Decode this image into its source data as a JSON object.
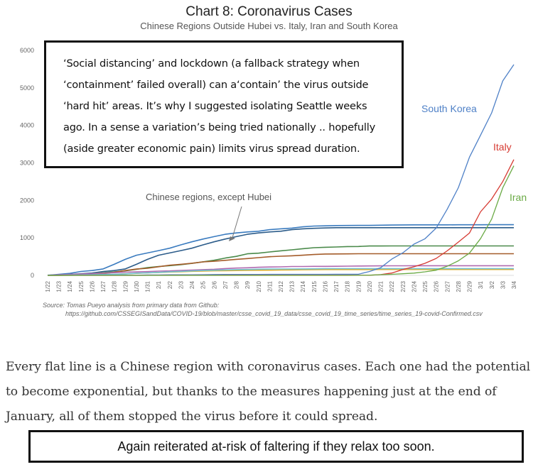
{
  "header": {
    "title": "Chart 8: Coronavirus Cases",
    "subtitle": "Chinese Regions Outside Hubei vs. Italy, Iran and South Korea"
  },
  "callout_text": "‘Social distancing’ and lockdown (a fallback strategy when ‘containment’ failed overall) can a‘contain’ the virus outside ‘hard hit’ areas. It’s why I suggested isolating Seattle  weeks ago. In a sense a variation’s being tried nationally .. hopefully (aside greater economic pain) limits virus spread duration.",
  "source": {
    "line1": "Source: Tomas Pueyo analysis from primary data from Github:",
    "line2": "https://github.com/CSSEGISandData/COVID-19/blob/master/csse_covid_19_data/csse_covid_19_time_series/time_series_19-covid-Confirmed.csv"
  },
  "paragraph": "Every flat line is a Chinese region with coronavirus cases. Each one had the potential to become exponential, but thanks to the measures happening just at the end of January, all of them stopped the virus before it could spread.",
  "bottom_note": "Again reiterated at-risk of faltering if they relax too soon.",
  "chart_data": {
    "type": "line",
    "title": "Chart 8: Coronavirus Cases",
    "subtitle": "Chinese Regions Outside Hubei vs. Italy, Iran and South Korea",
    "ylim": [
      0,
      6000
    ],
    "yticks": [
      0,
      1000,
      2000,
      3000,
      4000,
      5000,
      6000
    ],
    "grid": false,
    "x": [
      "1/22",
      "1/23",
      "1/24",
      "1/25",
      "1/26",
      "1/27",
      "1/28",
      "1/29",
      "1/30",
      "1/31",
      "2/1",
      "2/2",
      "2/3",
      "2/4",
      "2/5",
      "2/6",
      "2/7",
      "2/8",
      "2/9",
      "2/10",
      "2/11",
      "2/12",
      "2/13",
      "2/14",
      "2/15",
      "2/16",
      "2/17",
      "2/18",
      "2/19",
      "2/20",
      "2/21",
      "2/22",
      "2/23",
      "2/24",
      "2/25",
      "2/26",
      "2/27",
      "2/28",
      "2/29",
      "3/1",
      "3/2",
      "3/3",
      "3/4"
    ],
    "annotation": "Chinese regions, except Hubei",
    "series": [
      {
        "name": "South Korea",
        "color": "#4f81c7",
        "label": true,
        "values": [
          1,
          1,
          2,
          2,
          3,
          4,
          4,
          4,
          4,
          11,
          12,
          15,
          15,
          16,
          19,
          23,
          24,
          24,
          25,
          27,
          28,
          28,
          28,
          28,
          28,
          29,
          30,
          31,
          31,
          104,
          204,
          433,
          602,
          833,
          977,
          1261,
          1766,
          2337,
          3150,
          3736,
          4335,
          5186,
          5621
        ]
      },
      {
        "name": "Italy",
        "color": "#d63a32",
        "label": true,
        "values": [
          0,
          0,
          0,
          0,
          0,
          0,
          0,
          0,
          0,
          2,
          2,
          2,
          2,
          2,
          2,
          2,
          3,
          3,
          3,
          3,
          3,
          3,
          3,
          3,
          3,
          3,
          3,
          3,
          3,
          3,
          20,
          62,
          155,
          229,
          322,
          453,
          655,
          888,
          1128,
          1694,
          2036,
          2502,
          3089
        ]
      },
      {
        "name": "Iran",
        "color": "#6aaa45",
        "label": true,
        "values": [
          0,
          0,
          0,
          0,
          0,
          0,
          0,
          0,
          0,
          0,
          0,
          0,
          0,
          0,
          0,
          0,
          0,
          0,
          0,
          0,
          0,
          0,
          0,
          0,
          0,
          0,
          0,
          0,
          2,
          5,
          18,
          28,
          43,
          61,
          95,
          139,
          245,
          388,
          593,
          978,
          1501,
          2336,
          2922
        ]
      },
      {
        "values": [
          2,
          26,
          53,
          104,
          128,
          173,
          296,
          428,
          538,
          599,
          661,
          724,
          813,
          895,
          970,
          1034,
          1095,
          1131,
          1159,
          1177,
          1219,
          1241,
          1261,
          1294,
          1316,
          1322,
          1328,
          1331,
          1332,
          1333,
          1339,
          1342,
          1345,
          1347,
          1347,
          1347,
          1348,
          1349,
          1349,
          1350,
          1351,
          1352,
          1352
        ],
        "color": "#3a7bbf"
      },
      {
        "values": [
          5,
          10,
          27,
          43,
          62,
          104,
          128,
          173,
          296,
          428,
          538,
          599,
          661,
          724,
          813,
          895,
          970,
          1034,
          1095,
          1131,
          1159,
          1177,
          1219,
          1241,
          1254,
          1264,
          1271,
          1272,
          1272,
          1272,
          1272,
          1272,
          1272,
          1272,
          1272,
          1272,
          1272,
          1272,
          1272,
          1272,
          1272,
          1272,
          1272
        ],
        "color": "#2c5c8a"
      },
      {
        "values": [
          1,
          5,
          15,
          27,
          46,
          75,
          95,
          122,
          163,
          208,
          236,
          259,
          283,
          320,
          362,
          404,
          461,
          507,
          575,
          593,
          624,
          654,
          681,
          712,
          738,
          750,
          758,
          768,
          771,
          784,
          784,
          786,
          786,
          786,
          786,
          786,
          786,
          786,
          786,
          786,
          786,
          786,
          786
        ],
        "color": "#4a8a4a"
      },
      {
        "values": [
          0,
          1,
          9,
          25,
          35,
          43,
          83,
          128,
          168,
          190,
          231,
          271,
          295,
          323,
          359,
          376,
          401,
          427,
          449,
          474,
          497,
          511,
          522,
          538,
          557,
          569,
          571,
          574,
          577,
          577,
          577,
          577,
          577,
          577,
          577,
          577,
          577,
          577,
          577,
          577,
          577,
          577,
          577
        ],
        "color": "#a45c2a"
      },
      {
        "values": [
          2,
          15,
          27,
          38,
          48,
          61,
          72,
          85,
          92,
          101,
          113,
          120,
          132,
          142,
          153,
          162,
          181,
          195,
          203,
          216,
          224,
          228,
          236,
          237,
          240,
          240,
          243,
          246,
          249,
          252,
          254,
          255,
          256,
          258,
          258,
          258,
          258,
          258,
          258,
          258,
          258,
          258,
          258
        ],
        "color": "#b06ab0"
      },
      {
        "values": [
          0,
          2,
          4,
          8,
          13,
          24,
          28,
          40,
          53,
          66,
          78,
          89,
          96,
          107,
          114,
          121,
          124,
          129,
          134,
          136,
          139,
          143,
          146,
          149,
          152,
          155,
          155,
          156,
          156,
          156,
          157,
          157,
          157,
          157,
          157,
          157,
          157,
          157,
          157,
          157,
          157,
          157,
          157
        ],
        "color": "#e0b030"
      },
      {
        "values": [
          1,
          3,
          8,
          11,
          17,
          22,
          30,
          40,
          59,
          68,
          80,
          96,
          106,
          120,
          130,
          138,
          146,
          154,
          158,
          164,
          168,
          170,
          171,
          173,
          175,
          177,
          179,
          180,
          180,
          180,
          180,
          180,
          180,
          180,
          180,
          180,
          180,
          180,
          180,
          180,
          180,
          180,
          180
        ],
        "color": "#6fc0d0"
      }
    ]
  }
}
